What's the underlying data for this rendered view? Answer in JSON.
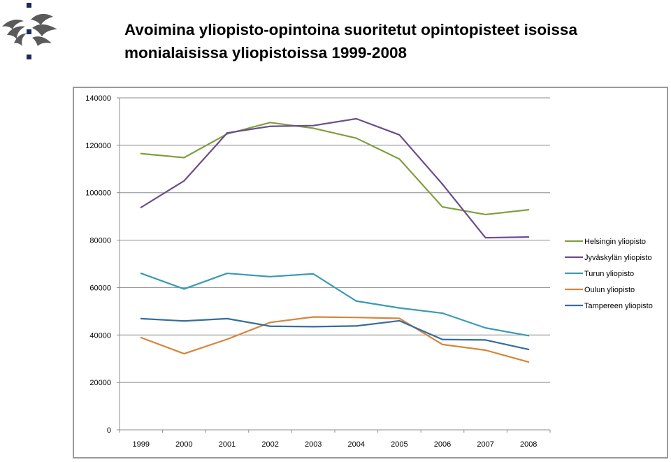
{
  "title": {
    "line1": "Avoimina yliopisto-opintoina suoritetut opintopisteet isoissa",
    "line2": "monialaisissa yliopistoissa 1999-2008"
  },
  "logo": {
    "icon": "university-flame-logo-icon",
    "color": "#1c2a5a"
  },
  "chart_data": {
    "type": "line",
    "title": "",
    "xlabel": "",
    "ylabel": "",
    "categories": [
      "1999",
      "2000",
      "2001",
      "2002",
      "2003",
      "2004",
      "2005",
      "2006",
      "2007",
      "2008"
    ],
    "ylim": [
      0,
      140000
    ],
    "yticks": [
      0,
      20000,
      40000,
      60000,
      80000,
      100000,
      120000,
      140000
    ],
    "grid": true,
    "legend_position": "right",
    "series": [
      {
        "name": "Helsingin yliopisto",
        "color": "#7f9f3f",
        "values": [
          116500,
          114800,
          124800,
          129600,
          127200,
          123000,
          114200,
          94000,
          90800,
          92800
        ]
      },
      {
        "name": "Jyväskylän yliopisto",
        "color": "#6a4c8c",
        "values": [
          93800,
          105000,
          125200,
          128000,
          128300,
          131200,
          124400,
          103600,
          81000,
          81300
        ]
      },
      {
        "name": "Turun yliopisto",
        "color": "#3a9ab5",
        "values": [
          66000,
          59400,
          66000,
          64600,
          65800,
          54300,
          51400,
          49200,
          43000,
          39700
        ]
      },
      {
        "name": "Oulun yliopisto",
        "color": "#d8843a",
        "values": [
          38900,
          32100,
          38200,
          45300,
          47600,
          47400,
          47000,
          36000,
          33600,
          28600
        ]
      },
      {
        "name": "Tampereen yliopisto",
        "color": "#356d9e",
        "values": [
          46900,
          45900,
          46900,
          43700,
          43500,
          43800,
          46000,
          38100,
          37900,
          33900
        ]
      }
    ]
  }
}
